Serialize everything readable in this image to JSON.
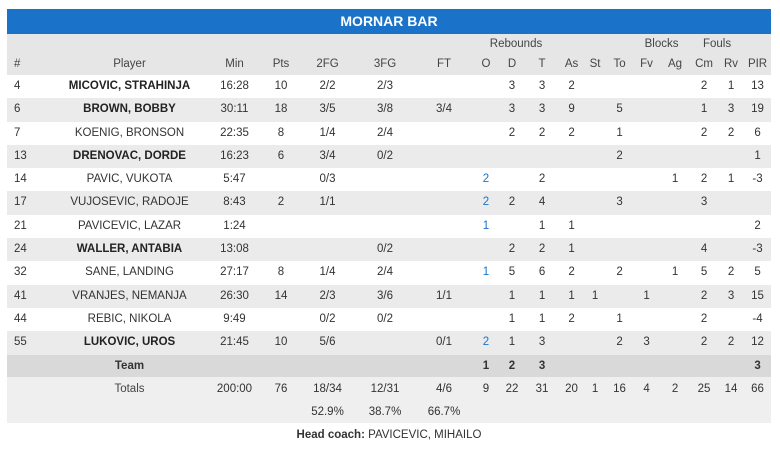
{
  "team_name": "MORNAR BAR",
  "group_headers": {
    "rebounds": "Rebounds",
    "blocks": "Blocks",
    "fouls": "Fouls"
  },
  "columns": [
    "#",
    "Player",
    "Min",
    "Pts",
    "2FG",
    "3FG",
    "FT",
    "O",
    "D",
    "T",
    "As",
    "St",
    "To",
    "Fv",
    "Ag",
    "Cm",
    "Rv",
    "PIR"
  ],
  "players": [
    {
      "no": "4",
      "name": "MICOVIC, STRAHINJA",
      "starter": true,
      "min": "16:28",
      "pts": "10",
      "fg2": "2/2",
      "fg3": "2/3",
      "ft": "",
      "o": "",
      "d": "3",
      "t": "3",
      "as": "2",
      "st": "",
      "to": "",
      "fv": "",
      "ag": "",
      "cm": "2",
      "rv": "1",
      "pir": "13"
    },
    {
      "no": "6",
      "name": "BROWN, BOBBY",
      "starter": true,
      "min": "30:11",
      "pts": "18",
      "fg2": "3/5",
      "fg3": "3/8",
      "ft": "3/4",
      "o": "",
      "d": "3",
      "t": "3",
      "as": "9",
      "st": "",
      "to": "5",
      "fv": "",
      "ag": "",
      "cm": "1",
      "rv": "3",
      "pir": "19"
    },
    {
      "no": "7",
      "name": "KOENIG, BRONSON",
      "starter": false,
      "min": "22:35",
      "pts": "8",
      "fg2": "1/4",
      "fg3": "2/4",
      "ft": "",
      "o": "",
      "d": "2",
      "t": "2",
      "as": "2",
      "st": "",
      "to": "1",
      "fv": "",
      "ag": "",
      "cm": "2",
      "rv": "2",
      "pir": "6"
    },
    {
      "no": "13",
      "name": "DRENOVAC, DORDE",
      "starter": true,
      "min": "16:23",
      "pts": "6",
      "fg2": "3/4",
      "fg3": "0/2",
      "ft": "",
      "o": "",
      "d": "",
      "t": "",
      "as": "",
      "st": "",
      "to": "2",
      "fv": "",
      "ag": "",
      "cm": "",
      "rv": "",
      "pir": "1"
    },
    {
      "no": "14",
      "name": "PAVIC, VUKOTA",
      "starter": false,
      "min": "5:47",
      "pts": "",
      "fg2": "0/3",
      "fg3": "",
      "ft": "",
      "o": "2",
      "d": "",
      "t": "2",
      "as": "",
      "st": "",
      "to": "",
      "fv": "",
      "ag": "1",
      "cm": "2",
      "rv": "1",
      "pir": "-3"
    },
    {
      "no": "17",
      "name": "VUJOSEVIC, RADOJE",
      "starter": false,
      "min": "8:43",
      "pts": "2",
      "fg2": "1/1",
      "fg3": "",
      "ft": "",
      "o": "2",
      "d": "2",
      "t": "4",
      "as": "",
      "st": "",
      "to": "3",
      "fv": "",
      "ag": "",
      "cm": "3",
      "rv": "",
      "pir": ""
    },
    {
      "no": "21",
      "name": "PAVICEVIC, LAZAR",
      "starter": false,
      "min": "1:24",
      "pts": "",
      "fg2": "",
      "fg3": "",
      "ft": "",
      "o": "1",
      "d": "",
      "t": "1",
      "as": "1",
      "st": "",
      "to": "",
      "fv": "",
      "ag": "",
      "cm": "",
      "rv": "",
      "pir": "2"
    },
    {
      "no": "24",
      "name": "WALLER, ANTABIA",
      "starter": true,
      "min": "13:08",
      "pts": "",
      "fg2": "",
      "fg3": "0/2",
      "ft": "",
      "o": "",
      "d": "2",
      "t": "2",
      "as": "1",
      "st": "",
      "to": "",
      "fv": "",
      "ag": "",
      "cm": "4",
      "rv": "",
      "pir": "-3"
    },
    {
      "no": "32",
      "name": "SANE, LANDING",
      "starter": false,
      "min": "27:17",
      "pts": "8",
      "fg2": "1/4",
      "fg3": "2/4",
      "ft": "",
      "o": "1",
      "d": "5",
      "t": "6",
      "as": "2",
      "st": "",
      "to": "2",
      "fv": "",
      "ag": "1",
      "cm": "5",
      "rv": "2",
      "pir": "5"
    },
    {
      "no": "41",
      "name": "VRANJES, NEMANJA",
      "starter": false,
      "min": "26:30",
      "pts": "14",
      "fg2": "2/3",
      "fg3": "3/6",
      "ft": "1/1",
      "o": "",
      "d": "1",
      "t": "1",
      "as": "1",
      "st": "1",
      "to": "",
      "fv": "1",
      "ag": "",
      "cm": "2",
      "rv": "3",
      "pir": "15"
    },
    {
      "no": "44",
      "name": "REBIC, NIKOLA",
      "starter": false,
      "min": "9:49",
      "pts": "",
      "fg2": "0/2",
      "fg3": "0/2",
      "ft": "",
      "o": "",
      "d": "1",
      "t": "1",
      "as": "2",
      "st": "",
      "to": "1",
      "fv": "",
      "ag": "",
      "cm": "2",
      "rv": "",
      "pir": "-4"
    },
    {
      "no": "55",
      "name": "LUKOVIC, UROS",
      "starter": true,
      "min": "21:45",
      "pts": "10",
      "fg2": "5/6",
      "fg3": "",
      "ft": "0/1",
      "o": "2",
      "d": "1",
      "t": "3",
      "as": "",
      "st": "",
      "to": "2",
      "fv": "3",
      "ag": "",
      "cm": "2",
      "rv": "2",
      "pir": "12"
    }
  ],
  "team_row": {
    "label": "Team",
    "o": "1",
    "d": "2",
    "t": "3",
    "pir": "3"
  },
  "totals": {
    "label": "Totals",
    "min": "200:00",
    "pts": "76",
    "fg2": "18/34",
    "fg3": "12/31",
    "ft": "4/6",
    "o": "9",
    "d": "22",
    "t": "31",
    "as": "20",
    "st": "1",
    "to": "16",
    "fv": "4",
    "ag": "2",
    "cm": "25",
    "rv": "14",
    "pir": "66"
  },
  "percentages": {
    "fg2": "52.9%",
    "fg3": "38.7%",
    "ft": "66.7%"
  },
  "coach": {
    "label": "Head coach:",
    "name": "PAVICEVIC, MIHAILO"
  }
}
